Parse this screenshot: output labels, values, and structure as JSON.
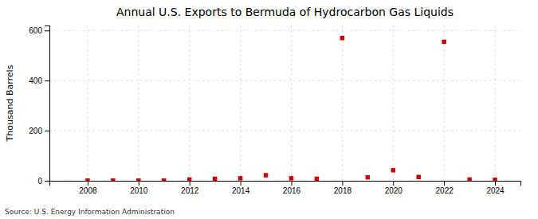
{
  "chart_data": {
    "type": "scatter",
    "title": "Annual U.S. Exports to Bermuda of Hydrocarbon Gas Liquids",
    "ylabel": "Thousand Barrels",
    "annotations": [
      "Source: U.S. Energy Information Administration"
    ],
    "x": [
      2008,
      2009,
      2010,
      2011,
      2012,
      2013,
      2014,
      2015,
      2016,
      2017,
      2018,
      2019,
      2020,
      2021,
      2022,
      2023,
      2024
    ],
    "values": [
      1,
      1,
      1,
      1,
      5,
      8,
      10,
      22,
      10,
      8,
      570,
      14,
      42,
      15,
      555,
      5,
      4
    ],
    "color": "#cc0000",
    "marker": "square",
    "xlim": [
      2006.5,
      2025
    ],
    "xticks": [
      2008,
      2010,
      2012,
      2014,
      2016,
      2018,
      2020,
      2022,
      2024
    ],
    "ylim": [
      0,
      620
    ],
    "yticks": [
      0,
      200,
      400,
      600
    ],
    "grid": true
  }
}
